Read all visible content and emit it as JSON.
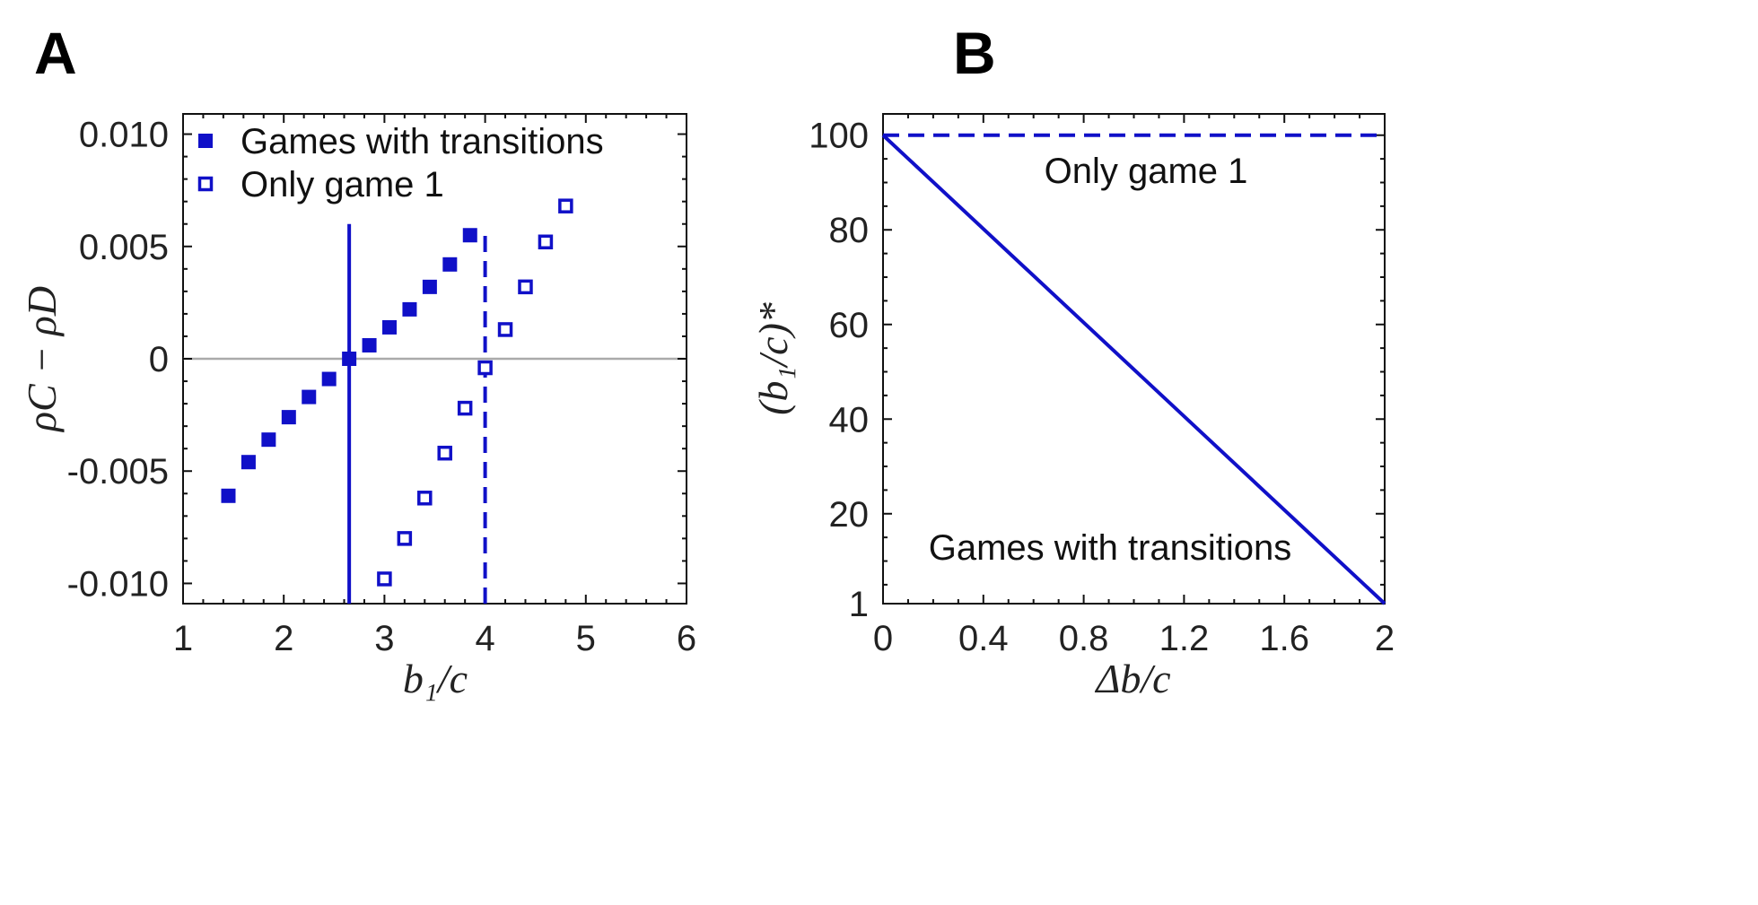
{
  "panels": {
    "a": {
      "letter": "A"
    },
    "b": {
      "letter": "B"
    }
  },
  "chart_data": [
    {
      "type": "scatter",
      "panel": "A",
      "xlabel": "b₁/c",
      "ylabel": "ρC − ρD",
      "xlim": [
        1,
        6
      ],
      "ylim": [
        -0.0109,
        0.0109
      ],
      "x_ticks": [
        1,
        2,
        3,
        4,
        5,
        6
      ],
      "x_tick_labels": [
        "1",
        "2",
        "3",
        "4",
        "5",
        "6"
      ],
      "y_ticks": [
        -0.01,
        -0.005,
        0,
        0.005,
        0.01
      ],
      "y_tick_labels": [
        "-0.010",
        "-0.005",
        "0",
        "0.005",
        "0.010"
      ],
      "color": "#1010c8",
      "zero_line_color": "#aaaaaa",
      "series": [
        {
          "name": "Games with transitions",
          "marker": "filled-square",
          "x": [
            1.45,
            1.65,
            1.85,
            2.05,
            2.25,
            2.45,
            2.65,
            2.85,
            3.05,
            3.25,
            3.45,
            3.65,
            3.85
          ],
          "y": [
            -0.0061,
            -0.0046,
            -0.0036,
            -0.0026,
            -0.0017,
            -0.0009,
            0.0,
            0.0006,
            0.0014,
            0.0022,
            0.0032,
            0.0042,
            0.0055
          ]
        },
        {
          "name": "Only game 1",
          "marker": "open-square",
          "x": [
            3.0,
            3.2,
            3.4,
            3.6,
            3.8,
            4.0,
            4.2,
            4.4,
            4.6,
            4.8
          ],
          "y": [
            -0.0098,
            -0.008,
            -0.0062,
            -0.0042,
            -0.0022,
            -0.0004,
            0.0013,
            0.0032,
            0.0052,
            0.0068
          ]
        }
      ],
      "reference_lines": [
        {
          "name": "transitions-threshold",
          "x": 2.65,
          "y_top": 0.006,
          "style": "solid"
        },
        {
          "name": "game1-threshold",
          "x": 4.0,
          "y_top": 0.0057,
          "style": "dashed"
        }
      ],
      "legend": {
        "position": "top-left",
        "entries": [
          "Games with transitions",
          "Only game 1"
        ]
      }
    },
    {
      "type": "line",
      "panel": "B",
      "xlabel": "Δb/c",
      "ylabel": "(b₁/c)*",
      "xlim": [
        0,
        2
      ],
      "ylim": [
        1,
        104.5
      ],
      "x_ticks": [
        0,
        0.4,
        0.8,
        1.2,
        1.6,
        2
      ],
      "x_tick_labels": [
        "0",
        "0.4",
        "0.8",
        "1.2",
        "1.6",
        "2"
      ],
      "y_ticks": [
        1,
        20,
        40,
        60,
        80,
        100
      ],
      "y_tick_labels": [
        "1",
        "20",
        "40",
        "60",
        "80",
        "100"
      ],
      "color": "#1010c8",
      "series": [
        {
          "name": "Games with transitions",
          "style": "solid",
          "x": [
            0,
            2
          ],
          "y": [
            100,
            1
          ]
        },
        {
          "name": "Only game 1",
          "style": "dashed",
          "x": [
            0,
            2
          ],
          "y": [
            100,
            100
          ]
        }
      ],
      "annotations": [
        "Only game 1",
        "Games with transitions"
      ]
    }
  ]
}
